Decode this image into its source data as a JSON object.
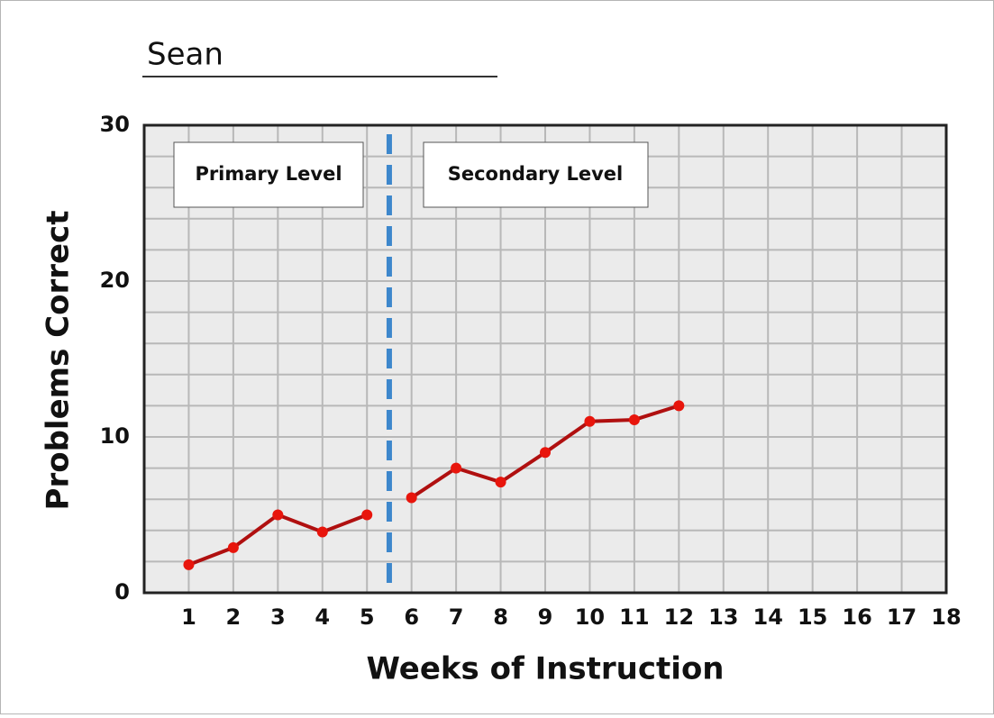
{
  "chart_data": {
    "type": "line",
    "title": "Sean",
    "xlabel": "Weeks of Instruction",
    "ylabel": "Problems Correct",
    "xlim": [
      0,
      18
    ],
    "xticks": [
      1,
      2,
      3,
      4,
      5,
      6,
      7,
      8,
      9,
      10,
      11,
      12,
      13,
      14,
      15,
      16,
      17,
      18
    ],
    "ylim": [
      0,
      30
    ],
    "yticks": [
      0,
      10,
      20,
      30
    ],
    "y_gridlines": [
      2,
      4,
      6,
      8,
      10,
      12,
      14,
      16,
      18,
      20,
      22,
      24,
      26,
      28
    ],
    "grid": true,
    "series": [
      {
        "color": "#b01010",
        "marker_color": "#e8150c",
        "x": [
          1,
          2,
          3,
          4,
          5
        ],
        "values": [
          1.8,
          2.9,
          5,
          3.9,
          5
        ]
      },
      {
        "color": "#b01010",
        "marker_color": "#e8150c",
        "x": [
          6,
          7,
          8,
          9,
          10,
          11,
          12
        ],
        "values": [
          6.1,
          8,
          7.1,
          9,
          11,
          11.1,
          12
        ]
      }
    ],
    "phase_line": {
      "x": 5.5,
      "color": "#3d87cc"
    },
    "annotations": [
      "Primary Level",
      "Secondary Level"
    ]
  }
}
